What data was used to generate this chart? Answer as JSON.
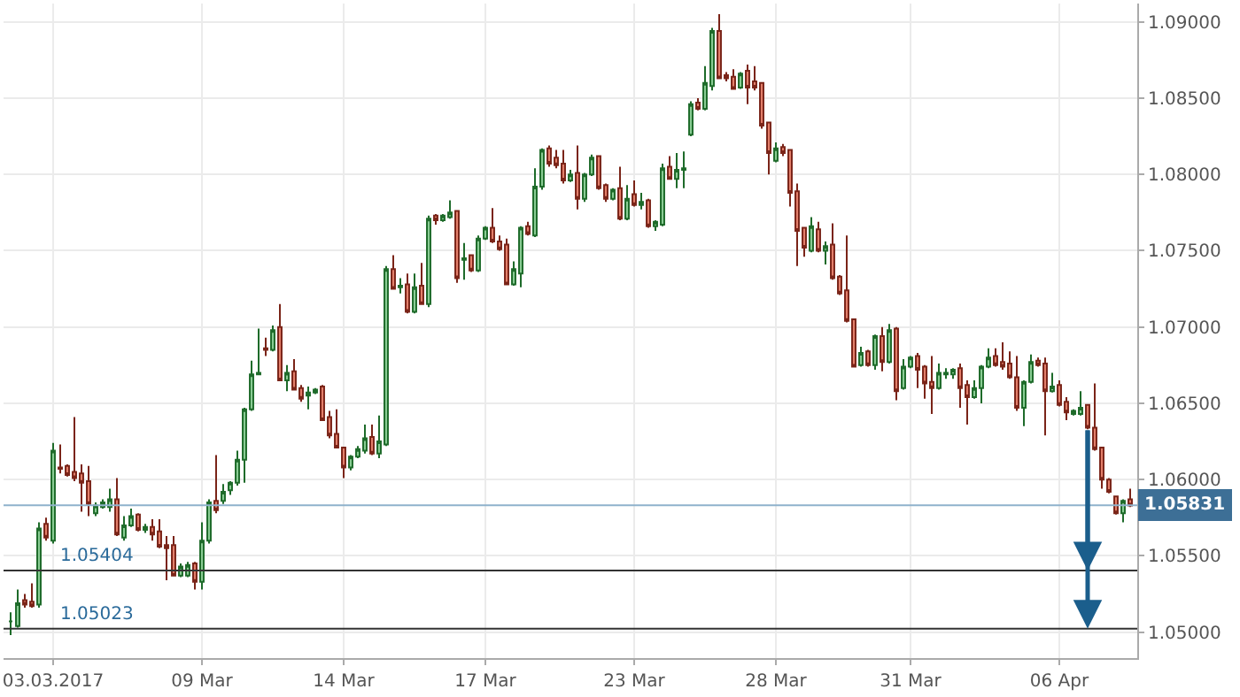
{
  "chart_data": {
    "type": "candlestick",
    "categories": [
      null,
      null,
      null,
      null,
      null,
      null,
      "03.03.2017",
      null,
      null,
      null,
      null,
      null,
      null,
      null,
      null,
      null,
      null,
      null,
      null,
      null,
      null,
      null,
      null,
      null,
      null,
      null,
      null,
      "09 Mar",
      null,
      null,
      null,
      null,
      null,
      null,
      null,
      null,
      null,
      null,
      null,
      null,
      null,
      null,
      null,
      null,
      null,
      null,
      null,
      "14 Mar",
      null,
      null,
      null,
      null,
      null,
      null,
      null,
      null,
      null,
      null,
      null,
      null,
      null,
      null,
      null,
      null,
      null,
      null,
      null,
      "17 Mar",
      null,
      null,
      null,
      null,
      null,
      null,
      null,
      null,
      null,
      null,
      null,
      null,
      null,
      null,
      null,
      null,
      null,
      null,
      null,
      null,
      "23 Mar",
      null,
      null,
      null,
      null,
      null,
      null,
      null,
      null,
      null,
      null,
      null,
      null,
      null,
      null,
      null,
      null,
      null,
      null,
      null,
      "28 Mar",
      null,
      null,
      null,
      null,
      null,
      null,
      null,
      null,
      null,
      null,
      null,
      null,
      null,
      null,
      null,
      null,
      null,
      null,
      "31 Mar",
      null,
      null,
      null,
      null,
      null,
      null,
      null,
      null,
      null,
      null,
      null,
      null,
      null,
      null,
      null,
      null,
      null,
      null,
      null,
      null,
      "06 Apr",
      null,
      null,
      null,
      null,
      null,
      null,
      null,
      null,
      null,
      null
    ],
    "ohlc": [
      [
        1.0507,
        1.0513,
        1.0498,
        1.0507
      ],
      [
        1.0504,
        1.0528,
        1.0503,
        1.0519
      ],
      [
        1.0521,
        1.0525,
        1.0516,
        1.0518
      ],
      [
        1.052,
        1.0532,
        1.0516,
        1.0517
      ],
      [
        1.0518,
        1.0572,
        1.0516,
        1.0568
      ],
      [
        1.0571,
        1.0575,
        1.056,
        1.0562
      ],
      [
        1.056,
        1.0624,
        1.0558,
        1.0619
      ],
      [
        1.0608,
        1.0623,
        1.0604,
        1.0607
      ],
      [
        1.0609,
        1.061,
        1.0602,
        1.0603
      ],
      [
        1.0605,
        1.0641,
        1.0599,
        1.0601
      ],
      [
        1.0604,
        1.061,
        1.0579,
        1.0598
      ],
      [
        1.0599,
        1.0609,
        1.0576,
        1.0584
      ],
      [
        1.0578,
        1.0585,
        1.0576,
        1.0583
      ],
      [
        1.0582,
        1.0587,
        1.0581,
        1.0585
      ],
      [
        1.0582,
        1.0594,
        1.0579,
        1.0587
      ],
      [
        1.0587,
        1.0601,
        1.0563,
        1.0564
      ],
      [
        1.0562,
        1.0576,
        1.056,
        1.057
      ],
      [
        1.057,
        1.0581,
        1.0569,
        1.0576
      ],
      [
        1.0577,
        1.0578,
        1.0566,
        1.0567
      ],
      [
        1.0567,
        1.0571,
        1.0565,
        1.0569
      ],
      [
        1.0569,
        1.0574,
        1.056,
        1.0564
      ],
      [
        1.0566,
        1.0574,
        1.0555,
        1.0556
      ],
      [
        1.0557,
        1.0563,
        1.0534,
        1.0555
      ],
      [
        1.0557,
        1.0563,
        1.0537,
        1.0537
      ],
      [
        1.0537,
        1.0545,
        1.0536,
        1.0543
      ],
      [
        1.0537,
        1.0546,
        1.0536,
        1.0544
      ],
      [
        1.0545,
        1.0546,
        1.0528,
        1.0533
      ],
      [
        1.0533,
        1.0572,
        1.0528,
        1.056
      ],
      [
        1.056,
        1.0587,
        1.0558,
        1.0585
      ],
      [
        1.0586,
        1.0616,
        1.0578,
        1.058
      ],
      [
        1.0586,
        1.0597,
        1.0584,
        1.0592
      ],
      [
        1.0593,
        1.0599,
        1.059,
        1.0598
      ],
      [
        1.0598,
        1.0619,
        1.0596,
        1.0613
      ],
      [
        1.0613,
        1.0647,
        1.0598,
        1.0646
      ],
      [
        1.0646,
        1.0678,
        1.0645,
        1.0669
      ],
      [
        1.0669,
        1.0699,
        1.0669,
        1.067
      ],
      [
        1.0686,
        1.0693,
        1.0681,
        1.0685
      ],
      [
        1.0685,
        1.0701,
        1.0684,
        1.0698
      ],
      [
        1.07,
        1.0715,
        1.0665,
        1.0665
      ],
      [
        1.0665,
        1.0675,
        1.0658,
        1.067
      ],
      [
        1.0671,
        1.0679,
        1.0659,
        1.0659
      ],
      [
        1.066,
        1.0662,
        1.0651,
        1.0653
      ],
      [
        1.0655,
        1.0661,
        1.0646,
        1.0657
      ],
      [
        1.0657,
        1.066,
        1.0656,
        1.0659
      ],
      [
        1.0661,
        1.0662,
        1.0639,
        1.0639
      ],
      [
        1.0641,
        1.0645,
        1.0627,
        1.0629
      ],
      [
        1.063,
        1.0646,
        1.0621,
        1.0621
      ],
      [
        1.0621,
        1.0621,
        1.0601,
        1.0608
      ],
      [
        1.0608,
        1.0616,
        1.0606,
        1.0615
      ],
      [
        1.0615,
        1.0622,
        1.0614,
        1.062
      ],
      [
        1.0619,
        1.0636,
        1.0617,
        1.0627
      ],
      [
        1.0628,
        1.0636,
        1.0616,
        1.0617
      ],
      [
        1.0617,
        1.0642,
        1.0614,
        1.0625
      ],
      [
        1.0623,
        1.074,
        1.0622,
        1.0738
      ],
      [
        1.0738,
        1.0747,
        1.0725,
        1.0725
      ],
      [
        1.0726,
        1.0732,
        1.0722,
        1.0727
      ],
      [
        1.0728,
        1.0735,
        1.0709,
        1.071
      ],
      [
        1.071,
        1.0735,
        1.0709,
        1.0726
      ],
      [
        1.0727,
        1.0742,
        1.0715,
        1.0715
      ],
      [
        1.0715,
        1.0773,
        1.0713,
        1.0771
      ],
      [
        1.0773,
        1.0774,
        1.0767,
        1.077
      ],
      [
        1.077,
        1.0774,
        1.0769,
        1.0773
      ],
      [
        1.0772,
        1.0783,
        1.0771,
        1.0775
      ],
      [
        1.0776,
        1.0776,
        1.0729,
        1.0732
      ],
      [
        1.0744,
        1.0755,
        1.0731,
        1.0745
      ],
      [
        1.0747,
        1.0747,
        1.0736,
        1.0737
      ],
      [
        1.0737,
        1.076,
        1.0736,
        1.0758
      ],
      [
        1.0758,
        1.0766,
        1.0757,
        1.0765
      ],
      [
        1.0765,
        1.0778,
        1.0755,
        1.0756
      ],
      [
        1.0756,
        1.076,
        1.075,
        1.0751
      ],
      [
        1.0754,
        1.0758,
        1.0728,
        1.0728
      ],
      [
        1.0728,
        1.0743,
        1.0727,
        1.0738
      ],
      [
        1.0735,
        1.0766,
        1.0726,
        1.0765
      ],
      [
        1.0766,
        1.0769,
        1.076,
        1.0761
      ],
      [
        1.076,
        1.0804,
        1.0759,
        1.0792
      ],
      [
        1.0792,
        1.0817,
        1.079,
        1.0816
      ],
      [
        1.0817,
        1.0819,
        1.0805,
        1.0807
      ],
      [
        1.0811,
        1.0816,
        1.0804,
        1.0806
      ],
      [
        1.0807,
        1.0816,
        1.0794,
        1.0796
      ],
      [
        1.0796,
        1.0803,
        1.0795,
        1.08
      ],
      [
        1.0801,
        1.0819,
        1.0777,
        1.0784
      ],
      [
        1.0784,
        1.0801,
        1.0782,
        1.08
      ],
      [
        1.08,
        1.0813,
        1.0799,
        1.0811
      ],
      [
        1.0812,
        1.0812,
        1.079,
        1.0791
      ],
      [
        1.0793,
        1.0794,
        1.0782,
        1.0784
      ],
      [
        1.0784,
        1.0791,
        1.0783,
        1.079
      ],
      [
        1.0791,
        1.0805,
        1.077,
        1.0771
      ],
      [
        1.0771,
        1.0793,
        1.077,
        1.0784
      ],
      [
        1.0787,
        1.0796,
        1.0779,
        1.078
      ],
      [
        1.078,
        1.0788,
        1.0777,
        1.0782
      ],
      [
        1.0783,
        1.0784,
        1.0765,
        1.0766
      ],
      [
        1.0766,
        1.077,
        1.0763,
        1.0769
      ],
      [
        1.0767,
        1.0807,
        1.0766,
        1.0804
      ],
      [
        1.0805,
        1.0812,
        1.0797,
        1.0797
      ],
      [
        1.0797,
        1.0814,
        1.0791,
        1.0803
      ],
      [
        1.0803,
        1.0815,
        1.0791,
        1.0804
      ],
      [
        1.0826,
        1.0848,
        1.0825,
        1.0846
      ],
      [
        1.0847,
        1.085,
        1.0842,
        1.0843
      ],
      [
        1.0843,
        1.0871,
        1.0842,
        1.086
      ],
      [
        1.0858,
        1.0896,
        1.0855,
        1.0894
      ],
      [
        1.0894,
        1.0905,
        1.0863,
        1.0863
      ],
      [
        1.0865,
        1.0867,
        1.0861,
        1.0863
      ],
      [
        1.0864,
        1.0869,
        1.0856,
        1.0856
      ],
      [
        1.0857,
        1.0867,
        1.0856,
        1.0866
      ],
      [
        1.0868,
        1.0872,
        1.0846,
        1.0857
      ],
      [
        1.0861,
        1.0871,
        1.0855,
        1.0857
      ],
      [
        1.086,
        1.086,
        1.083,
        1.0832
      ],
      [
        1.0834,
        1.0834,
        1.08,
        1.0814
      ],
      [
        1.0809,
        1.0821,
        1.0808,
        1.0817
      ],
      [
        1.0818,
        1.082,
        1.0812,
        1.0814
      ],
      [
        1.0816,
        1.0816,
        1.0779,
        1.0788
      ],
      [
        1.0789,
        1.0794,
        1.074,
        1.0763
      ],
      [
        1.0765,
        1.0765,
        1.0746,
        1.0752
      ],
      [
        1.075,
        1.0772,
        1.0749,
        1.0766
      ],
      [
        1.0764,
        1.0769,
        1.0749,
        1.075
      ],
      [
        1.075,
        1.0756,
        1.0741,
        1.0753
      ],
      [
        1.0754,
        1.0768,
        1.0731,
        1.0732
      ],
      [
        1.0733,
        1.0734,
        1.0721,
        1.0722
      ],
      [
        1.0724,
        1.076,
        1.0703,
        1.0704
      ],
      [
        1.0705,
        1.0705,
        1.0674,
        1.0674
      ],
      [
        1.0675,
        1.0687,
        1.0674,
        1.0683
      ],
      [
        1.0684,
        1.0685,
        1.0674,
        1.0675
      ],
      [
        1.0675,
        1.0695,
        1.0672,
        1.0694
      ],
      [
        1.0694,
        1.07,
        1.0671,
        1.0677
      ],
      [
        1.0677,
        1.0702,
        1.0676,
        1.0698
      ],
      [
        1.0699,
        1.07,
        1.0652,
        1.0658
      ],
      [
        1.066,
        1.0679,
        1.0659,
        1.0674
      ],
      [
        1.0674,
        1.0681,
        1.0673,
        1.068
      ],
      [
        1.0681,
        1.0683,
        1.066,
        1.0672
      ],
      [
        1.0674,
        1.0675,
        1.0653,
        1.0663
      ],
      [
        1.0664,
        1.0681,
        1.0643,
        1.066
      ],
      [
        1.066,
        1.0676,
        1.0659,
        1.067
      ],
      [
        1.0669,
        1.0673,
        1.0666,
        1.067
      ],
      [
        1.0669,
        1.0673,
        1.0666,
        1.0672
      ],
      [
        1.0673,
        1.0676,
        1.0647,
        1.066
      ],
      [
        1.0662,
        1.0665,
        1.0636,
        1.0654
      ],
      [
        1.0654,
        1.0665,
        1.0653,
        1.066
      ],
      [
        1.066,
        1.0675,
        1.065,
        1.0674
      ],
      [
        1.0674,
        1.0686,
        1.0673,
        1.068
      ],
      [
        1.0681,
        1.0686,
        1.0674,
        1.0675
      ],
      [
        1.0677,
        1.069,
        1.0672,
        1.0674
      ],
      [
        1.0676,
        1.0684,
        1.0666,
        1.0667
      ],
      [
        1.0667,
        1.0681,
        1.0645,
        1.0647
      ],
      [
        1.0647,
        1.0665,
        1.0635,
        1.0664
      ],
      [
        1.0664,
        1.0682,
        1.0663,
        1.0677
      ],
      [
        1.0678,
        1.068,
        1.0674,
        1.0675
      ],
      [
        1.0676,
        1.068,
        1.0629,
        1.0658
      ],
      [
        1.0658,
        1.067,
        1.0657,
        1.0661
      ],
      [
        1.0662,
        1.0665,
        1.0648,
        1.0649
      ],
      [
        1.0651,
        1.0654,
        1.0639,
        1.0644
      ],
      [
        1.0643,
        1.0646,
        1.0642,
        1.0645
      ],
      [
        1.0643,
        1.0658,
        1.0642,
        1.0647
      ],
      [
        1.0649,
        1.0649,
        1.0633,
        1.0634
      ],
      [
        1.0634,
        1.0663,
        1.0619,
        1.062
      ],
      [
        1.0621,
        1.0621,
        1.0594,
        1.06
      ],
      [
        1.06,
        1.0601,
        1.0591,
        1.0592
      ],
      [
        1.0589,
        1.0589,
        1.0577,
        1.0578
      ],
      [
        1.0578,
        1.0587,
        1.0572,
        1.0586
      ],
      [
        1.0587,
        1.0594,
        1.0582,
        1.0583
      ]
    ],
    "ylim": [
      1.0483,
      1.0912
    ],
    "yticks": [
      {
        "value": 1.05,
        "label": "1.05000"
      },
      {
        "value": 1.055,
        "label": "1.05500"
      },
      {
        "value": 1.06,
        "label": "1.06000"
      },
      {
        "value": 1.065,
        "label": "1.06500"
      },
      {
        "value": 1.07,
        "label": "1.07000"
      },
      {
        "value": 1.075,
        "label": "1.07500"
      },
      {
        "value": 1.08,
        "label": "1.08000"
      },
      {
        "value": 1.085,
        "label": "1.08500"
      },
      {
        "value": 1.09,
        "label": "1.09000"
      }
    ],
    "ref_lines": [
      {
        "axis": "y",
        "value": 1.05831,
        "label": "1.05831",
        "color": "#8fb2cc"
      },
      {
        "axis": "y",
        "value": 1.05404,
        "label": "1.05404",
        "color": "#333333"
      },
      {
        "axis": "y",
        "value": 1.05023,
        "label": "1.05023",
        "color": "#333333"
      }
    ],
    "grid": true
  }
}
